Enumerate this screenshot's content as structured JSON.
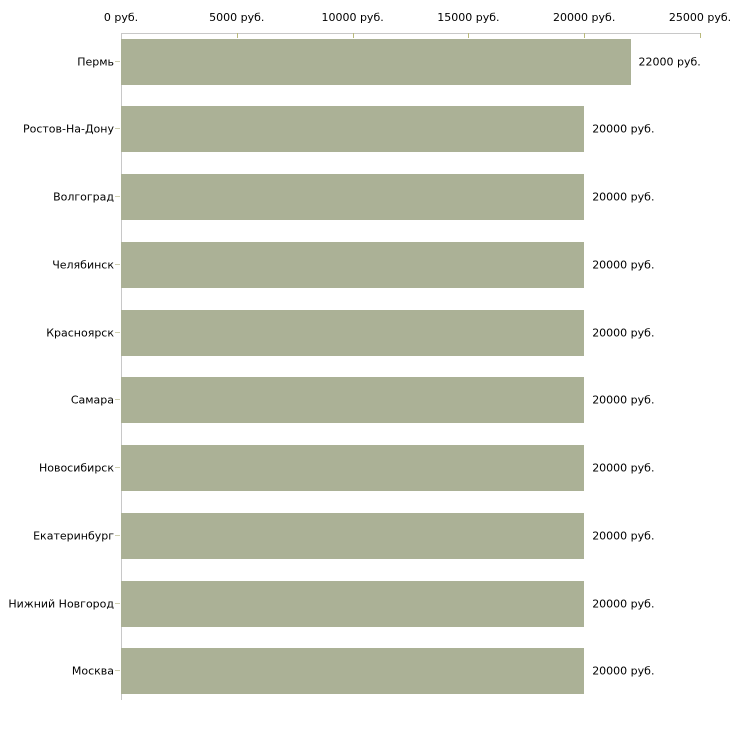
{
  "chart_data": {
    "type": "bar",
    "orientation": "horizontal",
    "title": "",
    "xlabel": "",
    "ylabel": "",
    "xlim": [
      0,
      25000
    ],
    "grid": false,
    "legend": false,
    "unit_suffix": " руб.",
    "categories": [
      "Пермь",
      "Ростов-На-Дону",
      "Волгоград",
      "Челябинск",
      "Красноярск",
      "Самара",
      "Новосибирск",
      "Екатеринбург",
      "Нижний Новгород",
      "Москва"
    ],
    "values": [
      22000,
      20000,
      20000,
      20000,
      20000,
      20000,
      20000,
      20000,
      20000,
      20000
    ],
    "value_labels": [
      "22000 руб.",
      "20000 руб.",
      "20000 руб.",
      "20000 руб.",
      "20000 руб.",
      "20000 руб.",
      "20000 руб.",
      "20000 руб.",
      "20000 руб.",
      "20000 руб."
    ],
    "x_ticks": [
      {
        "value": 0,
        "label": "0 руб."
      },
      {
        "value": 5000,
        "label": "5000 руб."
      },
      {
        "value": 10000,
        "label": "10000 руб."
      },
      {
        "value": 15000,
        "label": "15000 руб."
      },
      {
        "value": 20000,
        "label": "20000 руб."
      },
      {
        "value": 25000,
        "label": "25000 руб."
      }
    ],
    "colors": {
      "bar": "#abb196",
      "axis": "#c8c8c8",
      "x_tick": "#b9b97b",
      "y_tick": "#cfcfb0",
      "text": "#000000",
      "background": "#ffffff"
    }
  }
}
